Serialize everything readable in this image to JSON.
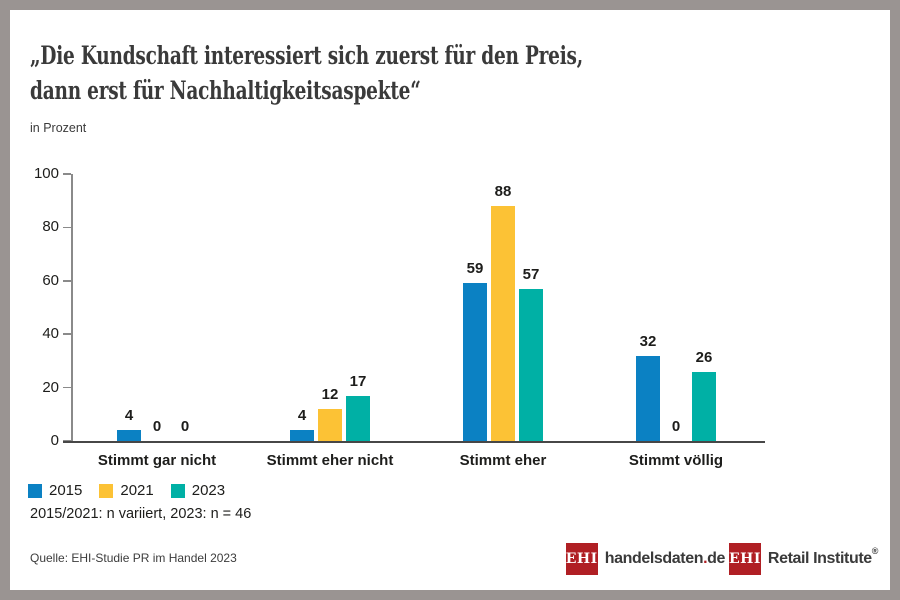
{
  "header": {
    "title_line1": "„Die Kundschaft interessiert sich zuerst für den Preis,",
    "title_line2": "dann erst für Nachhaltigkeitsaspekte“",
    "unit_label": "in Prozent"
  },
  "chart_data": {
    "type": "bar",
    "title": "Die Kundschaft interessiert sich zuerst für den Preis, dann erst für Nachhaltigkeitsaspekte",
    "ylabel": "in Prozent",
    "categories": [
      "Stimmt gar nicht",
      "Stimmt eher nicht",
      "Stimmt eher",
      "Stimmt völlig"
    ],
    "series": [
      {
        "name": "2015",
        "color": "#0b81c3",
        "values": [
          4,
          4,
          59,
          32
        ]
      },
      {
        "name": "2021",
        "color": "#fcc235",
        "values": [
          0,
          12,
          88,
          0
        ]
      },
      {
        "name": "2023",
        "color": "#00b0a5",
        "values": [
          0,
          17,
          57,
          26
        ]
      }
    ],
    "ylim": [
      0,
      100
    ],
    "yticks": [
      0,
      20,
      40,
      60,
      80,
      100
    ],
    "grid": false,
    "value_labels": true,
    "legend_position": "bottom-left"
  },
  "footnote": "2015/2021: n variiert, 2023: n = 46",
  "source": "Quelle: EHI-Studie PR im Handel 2023",
  "logos": {
    "handelsdaten": {
      "badge": "EHI",
      "text_main": "handelsdaten",
      "text_dot": ".",
      "text_tld": "de",
      "brand_red": "#b01f24"
    },
    "retail_institute": {
      "badge": "EHI",
      "text": "Retail Institute",
      "registered_mark": "®",
      "brand_red": "#b01f24"
    }
  },
  "frame": {
    "border_color": "#9a9492",
    "background": "#ffffff"
  }
}
